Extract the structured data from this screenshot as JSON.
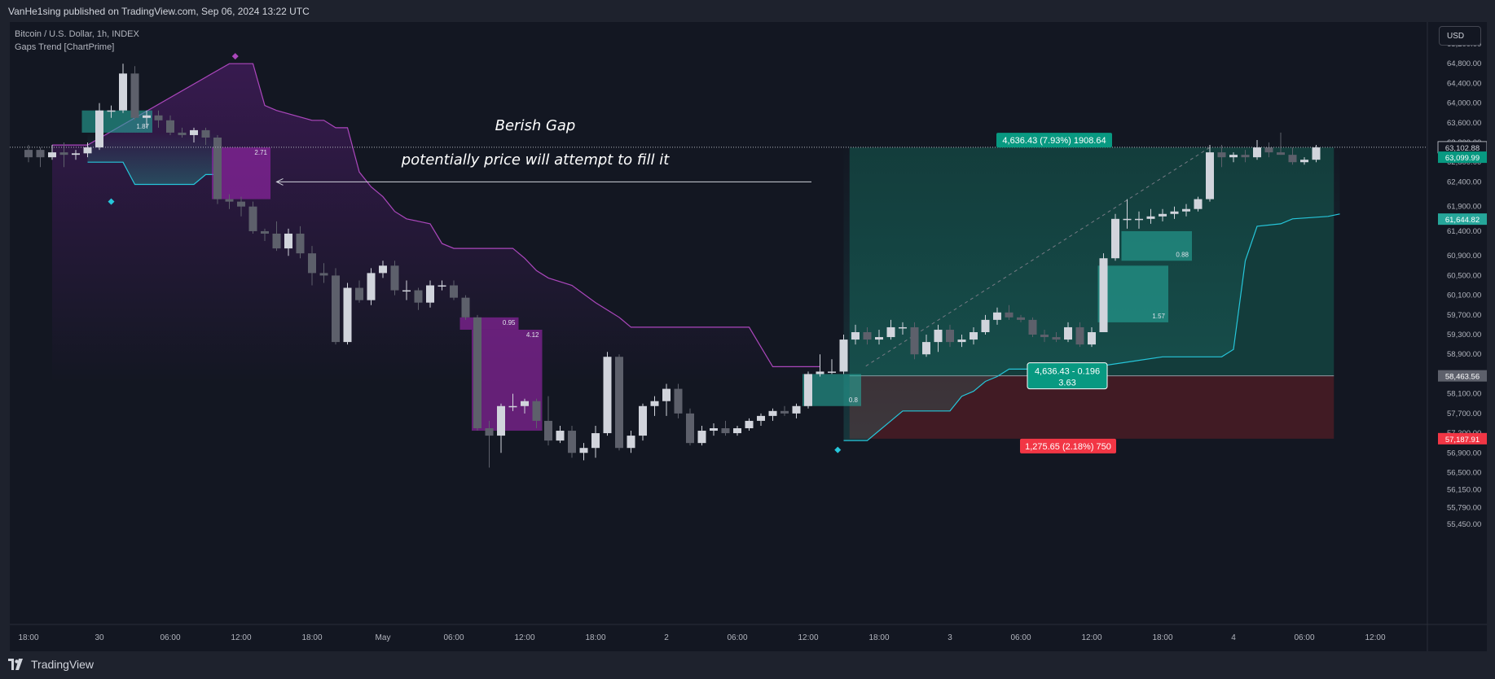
{
  "header": {
    "published_by": "VanHe1sing published on TradingView.com, Sep 06, 2024 13:22 UTC"
  },
  "legend": {
    "symbol": "Bitcoin / U.S. Dollar, 1h, INDEX",
    "indicator": "Gaps Trend [ChartPrime]"
  },
  "currency_button": "USD",
  "footer": {
    "brand": "TradingView",
    "logo_icon": "tradingview-logo-icon"
  },
  "colors": {
    "background": "#131722",
    "bull_candle": "#d1d4dc",
    "bear_candle": "#5d606b",
    "bull_gap": "#26a69a",
    "bear_gap": "#9c27b0",
    "trend_up": "#26c6da",
    "trend_down": "#ab47bc",
    "profit_zone": "#14433f",
    "loss_zone": "#4a1c24",
    "profit_label": "#089981",
    "loss_label": "#f23645"
  },
  "chart_data": {
    "type": "candlestick",
    "symbol": "Bitcoin / U.S. Dollar, 1h, INDEX",
    "price_range": [
      55200,
      65400
    ],
    "price_ticks": [
      "65,200.00",
      "64,800.00",
      "64,400.00",
      "64,000.00",
      "63,600.00",
      "63,200.00",
      "62,800.00",
      "62,400.00",
      "61,900.00",
      "61,400.00",
      "60,900.00",
      "60,500.00",
      "60,100.00",
      "59,700.00",
      "59,300.00",
      "58,900.00",
      "58,500.00",
      "58,100.00",
      "57,700.00",
      "57,300.00",
      "56,900.00",
      "56,500.00",
      "56,150.00",
      "55,790.00",
      "55,450.00"
    ],
    "time_ticks": [
      {
        "label": "18:00",
        "bar": 0
      },
      {
        "label": "30",
        "bar": 6
      },
      {
        "label": "06:00",
        "bar": 12
      },
      {
        "label": "12:00",
        "bar": 18
      },
      {
        "label": "18:00",
        "bar": 24
      },
      {
        "label": "May",
        "bar": 30
      },
      {
        "label": "06:00",
        "bar": 36
      },
      {
        "label": "12:00",
        "bar": 42
      },
      {
        "label": "18:00",
        "bar": 48
      },
      {
        "label": "2",
        "bar": 54
      },
      {
        "label": "06:00",
        "bar": 60
      },
      {
        "label": "12:00",
        "bar": 66
      },
      {
        "label": "18:00",
        "bar": 72
      },
      {
        "label": "3",
        "bar": 78
      },
      {
        "label": "06:00",
        "bar": 84
      },
      {
        "label": "12:00",
        "bar": 90
      },
      {
        "label": "18:00",
        "bar": 96
      },
      {
        "label": "4",
        "bar": 102
      },
      {
        "label": "06:00",
        "bar": 108
      },
      {
        "label": "12:00",
        "bar": 114
      }
    ],
    "candles": [
      {
        "o": 63050,
        "h": 63150,
        "l": 62800,
        "c": 62900
      },
      {
        "o": 63050,
        "h": 63100,
        "l": 62700,
        "c": 62900
      },
      {
        "o": 62900,
        "h": 63150,
        "l": 62850,
        "c": 63000
      },
      {
        "o": 63000,
        "h": 63200,
        "l": 62700,
        "c": 62950
      },
      {
        "o": 62950,
        "h": 63050,
        "l": 62850,
        "c": 62980
      },
      {
        "o": 62980,
        "h": 63200,
        "l": 62900,
        "c": 63100
      },
      {
        "o": 63100,
        "h": 64000,
        "l": 63050,
        "c": 63850
      },
      {
        "o": 63850,
        "h": 63950,
        "l": 63700,
        "c": 63850
      },
      {
        "o": 63850,
        "h": 64800,
        "l": 63800,
        "c": 64600
      },
      {
        "o": 64600,
        "h": 64750,
        "l": 63650,
        "c": 63700
      },
      {
        "o": 63700,
        "h": 63850,
        "l": 63500,
        "c": 63750
      },
      {
        "o": 63750,
        "h": 63850,
        "l": 63500,
        "c": 63650
      },
      {
        "o": 63650,
        "h": 63750,
        "l": 63350,
        "c": 63400
      },
      {
        "o": 63400,
        "h": 63500,
        "l": 63300,
        "c": 63350
      },
      {
        "o": 63350,
        "h": 63500,
        "l": 63200,
        "c": 63450
      },
      {
        "o": 63450,
        "h": 63500,
        "l": 63150,
        "c": 63300
      },
      {
        "o": 63300,
        "h": 63350,
        "l": 61950,
        "c": 62050
      },
      {
        "o": 62050,
        "h": 62150,
        "l": 61850,
        "c": 62000
      },
      {
        "o": 62000,
        "h": 62100,
        "l": 61700,
        "c": 61900
      },
      {
        "o": 61900,
        "h": 62000,
        "l": 61350,
        "c": 61400
      },
      {
        "o": 61400,
        "h": 61450,
        "l": 61200,
        "c": 61350
      },
      {
        "o": 61350,
        "h": 61600,
        "l": 61000,
        "c": 61050
      },
      {
        "o": 61050,
        "h": 61450,
        "l": 60900,
        "c": 61350
      },
      {
        "o": 61350,
        "h": 61500,
        "l": 60850,
        "c": 60950
      },
      {
        "o": 60950,
        "h": 61100,
        "l": 60300,
        "c": 60550
      },
      {
        "o": 60550,
        "h": 60750,
        "l": 60350,
        "c": 60500
      },
      {
        "o": 60500,
        "h": 60650,
        "l": 59100,
        "c": 59150
      },
      {
        "o": 59150,
        "h": 60350,
        "l": 59100,
        "c": 60250
      },
      {
        "o": 60250,
        "h": 60400,
        "l": 59950,
        "c": 60000
      },
      {
        "o": 60000,
        "h": 60650,
        "l": 59900,
        "c": 60550
      },
      {
        "o": 60550,
        "h": 60800,
        "l": 60450,
        "c": 60700
      },
      {
        "o": 60700,
        "h": 60800,
        "l": 60100,
        "c": 60200
      },
      {
        "o": 60200,
        "h": 60400,
        "l": 60000,
        "c": 60200
      },
      {
        "o": 60200,
        "h": 60250,
        "l": 59800,
        "c": 59950
      },
      {
        "o": 59950,
        "h": 60400,
        "l": 59850,
        "c": 60300
      },
      {
        "o": 60300,
        "h": 60400,
        "l": 60200,
        "c": 60300
      },
      {
        "o": 60300,
        "h": 60400,
        "l": 60000,
        "c": 60050
      },
      {
        "o": 60050,
        "h": 60100,
        "l": 59600,
        "c": 59650
      },
      {
        "o": 59650,
        "h": 59700,
        "l": 57350,
        "c": 57400
      },
      {
        "o": 57400,
        "h": 57550,
        "l": 56600,
        "c": 57250
      },
      {
        "o": 57250,
        "h": 57900,
        "l": 56900,
        "c": 57850
      },
      {
        "o": 57850,
        "h": 58100,
        "l": 57750,
        "c": 57850
      },
      {
        "o": 57850,
        "h": 58000,
        "l": 57700,
        "c": 57950
      },
      {
        "o": 57950,
        "h": 58000,
        "l": 57400,
        "c": 57550
      },
      {
        "o": 57550,
        "h": 58050,
        "l": 57050,
        "c": 57150
      },
      {
        "o": 57150,
        "h": 57450,
        "l": 57100,
        "c": 57350
      },
      {
        "o": 57350,
        "h": 57450,
        "l": 56800,
        "c": 56900
      },
      {
        "o": 56900,
        "h": 57100,
        "l": 56750,
        "c": 57000
      },
      {
        "o": 57000,
        "h": 57450,
        "l": 56800,
        "c": 57300
      },
      {
        "o": 57300,
        "h": 58950,
        "l": 57250,
        "c": 58850
      },
      {
        "o": 58850,
        "h": 58900,
        "l": 56950,
        "c": 57000
      },
      {
        "o": 57000,
        "h": 57350,
        "l": 56900,
        "c": 57250
      },
      {
        "o": 57250,
        "h": 57900,
        "l": 57150,
        "c": 57850
      },
      {
        "o": 57850,
        "h": 58050,
        "l": 57650,
        "c": 57950
      },
      {
        "o": 57950,
        "h": 58300,
        "l": 57650,
        "c": 58200
      },
      {
        "o": 58200,
        "h": 58300,
        "l": 57600,
        "c": 57700
      },
      {
        "o": 57700,
        "h": 57800,
        "l": 57050,
        "c": 57100
      },
      {
        "o": 57100,
        "h": 57450,
        "l": 57050,
        "c": 57350
      },
      {
        "o": 57350,
        "h": 57500,
        "l": 57250,
        "c": 57400
      },
      {
        "o": 57400,
        "h": 57550,
        "l": 57250,
        "c": 57300
      },
      {
        "o": 57300,
        "h": 57450,
        "l": 57250,
        "c": 57400
      },
      {
        "o": 57400,
        "h": 57600,
        "l": 57350,
        "c": 57550
      },
      {
        "o": 57550,
        "h": 57700,
        "l": 57450,
        "c": 57650
      },
      {
        "o": 57650,
        "h": 57800,
        "l": 57550,
        "c": 57750
      },
      {
        "o": 57750,
        "h": 57850,
        "l": 57650,
        "c": 57700
      },
      {
        "o": 57700,
        "h": 57900,
        "l": 57600,
        "c": 57850
      },
      {
        "o": 57850,
        "h": 58550,
        "l": 57800,
        "c": 58500
      },
      {
        "o": 58500,
        "h": 58900,
        "l": 58450,
        "c": 58550
      },
      {
        "o": 58550,
        "h": 58800,
        "l": 58500,
        "c": 58550
      },
      {
        "o": 58550,
        "h": 59300,
        "l": 58500,
        "c": 59200
      },
      {
        "o": 59200,
        "h": 59500,
        "l": 59100,
        "c": 59350
      },
      {
        "o": 59350,
        "h": 59450,
        "l": 59100,
        "c": 59200
      },
      {
        "o": 59200,
        "h": 59400,
        "l": 59100,
        "c": 59250
      },
      {
        "o": 59250,
        "h": 59600,
        "l": 59200,
        "c": 59450
      },
      {
        "o": 59450,
        "h": 59550,
        "l": 59300,
        "c": 59450
      },
      {
        "o": 59450,
        "h": 59550,
        "l": 58800,
        "c": 58900
      },
      {
        "o": 58900,
        "h": 59300,
        "l": 58850,
        "c": 59150
      },
      {
        "o": 59150,
        "h": 59500,
        "l": 58950,
        "c": 59400
      },
      {
        "o": 59400,
        "h": 59500,
        "l": 59050,
        "c": 59150
      },
      {
        "o": 59150,
        "h": 59300,
        "l": 59050,
        "c": 59200
      },
      {
        "o": 59200,
        "h": 59450,
        "l": 59100,
        "c": 59350
      },
      {
        "o": 59350,
        "h": 59700,
        "l": 59300,
        "c": 59600
      },
      {
        "o": 59600,
        "h": 59850,
        "l": 59500,
        "c": 59750
      },
      {
        "o": 59750,
        "h": 59900,
        "l": 59600,
        "c": 59650
      },
      {
        "o": 59650,
        "h": 59700,
        "l": 59550,
        "c": 59600
      },
      {
        "o": 59600,
        "h": 59650,
        "l": 59250,
        "c": 59300
      },
      {
        "o": 59300,
        "h": 59400,
        "l": 59150,
        "c": 59250
      },
      {
        "o": 59250,
        "h": 59350,
        "l": 59150,
        "c": 59200
      },
      {
        "o": 59200,
        "h": 59550,
        "l": 59150,
        "c": 59450
      },
      {
        "o": 59450,
        "h": 59550,
        "l": 59050,
        "c": 59100
      },
      {
        "o": 59100,
        "h": 59450,
        "l": 59050,
        "c": 59350
      },
      {
        "o": 59350,
        "h": 60950,
        "l": 59350,
        "c": 60850
      },
      {
        "o": 60850,
        "h": 61750,
        "l": 60800,
        "c": 61650
      },
      {
        "o": 61650,
        "h": 62050,
        "l": 61450,
        "c": 61650
      },
      {
        "o": 61650,
        "h": 61800,
        "l": 61450,
        "c": 61650
      },
      {
        "o": 61650,
        "h": 61850,
        "l": 61550,
        "c": 61700
      },
      {
        "o": 61700,
        "h": 61850,
        "l": 61600,
        "c": 61750
      },
      {
        "o": 61750,
        "h": 61900,
        "l": 61650,
        "c": 61800
      },
      {
        "o": 61800,
        "h": 61950,
        "l": 61700,
        "c": 61850
      },
      {
        "o": 61850,
        "h": 62100,
        "l": 61800,
        "c": 62050
      },
      {
        "o": 62050,
        "h": 63150,
        "l": 62000,
        "c": 63000
      },
      {
        "o": 63000,
        "h": 63150,
        "l": 62700,
        "c": 62900
      },
      {
        "o": 62900,
        "h": 63000,
        "l": 62800,
        "c": 62950
      },
      {
        "o": 62950,
        "h": 63050,
        "l": 62800,
        "c": 62900
      },
      {
        "o": 62900,
        "h": 63250,
        "l": 62850,
        "c": 63100
      },
      {
        "o": 63100,
        "h": 63200,
        "l": 62900,
        "c": 63000
      },
      {
        "o": 63000,
        "h": 63400,
        "l": 62950,
        "c": 62950
      },
      {
        "o": 62950,
        "h": 63100,
        "l": 62750,
        "c": 62800
      },
      {
        "o": 62800,
        "h": 62900,
        "l": 62750,
        "c": 62850
      },
      {
        "o": 62850,
        "h": 63150,
        "l": 62800,
        "c": 63100
      }
    ],
    "gap_boxes": [
      {
        "type": "bull",
        "start": 5,
        "end": 10,
        "top": 63850,
        "bottom": 63400,
        "label": "1.87"
      },
      {
        "type": "bear",
        "start": 16,
        "end": 20,
        "top": 63100,
        "bottom": 62050,
        "label": "2.71"
      },
      {
        "type": "bear",
        "start": 37,
        "end": 41,
        "top": 59650,
        "bottom": 59400,
        "label": "0.95"
      },
      {
        "type": "bear",
        "start": 38,
        "end": 43,
        "top": 59400,
        "bottom": 57350,
        "label": "4.12"
      },
      {
        "type": "bull",
        "start": 66,
        "end": 70,
        "top": 58500,
        "bottom": 57850,
        "label": "0.8"
      },
      {
        "type": "bull",
        "start": 93,
        "end": 98,
        "top": 61400,
        "bottom": 60800,
        "label": "0.88"
      },
      {
        "type": "bull",
        "start": 91,
        "end": 96,
        "top": 60700,
        "bottom": 59550,
        "label": "1.57"
      }
    ],
    "trend_line_up": [
      [
        5,
        62800
      ],
      [
        8,
        62800
      ],
      [
        9,
        62350
      ],
      [
        14,
        62350
      ],
      [
        15,
        62550
      ],
      [
        16,
        62550
      ]
    ],
    "trend_line_down": [
      [
        2,
        63150
      ],
      [
        5,
        63150
      ],
      [
        17,
        64800
      ],
      [
        19,
        64800
      ],
      [
        20,
        63950
      ],
      [
        21,
        63850
      ],
      [
        24,
        63650
      ],
      [
        25,
        63650
      ],
      [
        26,
        63500
      ],
      [
        27,
        63500
      ],
      [
        28,
        62600
      ],
      [
        29,
        62300
      ],
      [
        30,
        62100
      ],
      [
        31,
        61800
      ],
      [
        32,
        61650
      ],
      [
        33,
        61600
      ],
      [
        34,
        61550
      ],
      [
        35,
        61150
      ],
      [
        36,
        61050
      ],
      [
        41,
        61050
      ],
      [
        42,
        60850
      ],
      [
        43,
        60600
      ],
      [
        44,
        60450
      ],
      [
        46,
        60300
      ],
      [
        48,
        59950
      ],
      [
        50,
        59650
      ],
      [
        51,
        59450
      ],
      [
        61,
        59450
      ],
      [
        62,
        59050
      ],
      [
        63,
        58650
      ],
      [
        67,
        58650
      ]
    ],
    "trend_line_up_2": [
      [
        69,
        57150
      ],
      [
        71,
        57150
      ],
      [
        72,
        57350
      ],
      [
        73,
        57550
      ],
      [
        74,
        57750
      ],
      [
        78,
        57750
      ],
      [
        79,
        58050
      ],
      [
        80,
        58150
      ],
      [
        81,
        58350
      ],
      [
        82,
        58450
      ],
      [
        83,
        58600
      ],
      [
        89,
        58600
      ],
      [
        96,
        58850
      ],
      [
        101,
        58850
      ],
      [
        102,
        59000
      ],
      [
        103,
        60800
      ],
      [
        104,
        61500
      ],
      [
        106,
        61550
      ],
      [
        107,
        61650
      ],
      [
        110,
        61700
      ],
      [
        111,
        61750
      ]
    ],
    "trend_markers": [
      {
        "type": "up",
        "bar": 7,
        "price": 62000
      },
      {
        "type": "down",
        "bar": 17.5,
        "price": 64950
      },
      {
        "type": "up",
        "bar": 68.5,
        "price": 56960
      }
    ],
    "position": {
      "start": 69.5,
      "end": 110.5,
      "entry": 58463.56,
      "target": 63099.99,
      "stop": 57187.91,
      "target_label": "4,636.43 (7.93%) 1908.64",
      "stop_label": "1,275.65 (2.18%) 750",
      "center_label_line1": "4,636.43 - 0.196",
      "center_label_line2": "3.63"
    },
    "current_price_line": 63102.88,
    "price_labels": [
      {
        "text": "63,102.88",
        "price": 63102.88,
        "style": "plain"
      },
      {
        "text": "63,099.99",
        "price": 63099.99,
        "style": "profit"
      },
      {
        "text": "61,644.82",
        "price": 61644.82,
        "style": "trend"
      },
      {
        "text": "58,463.56",
        "price": 58463.56,
        "style": "entry"
      },
      {
        "text": "57,187.91",
        "price": 57187.91,
        "style": "loss"
      }
    ],
    "annotations": {
      "title": "Berish Gap",
      "subtitle": "potentially price will attempt to fill it"
    },
    "arrow": {
      "from_bar": 68,
      "to_bar": 21,
      "price": 62400
    }
  }
}
